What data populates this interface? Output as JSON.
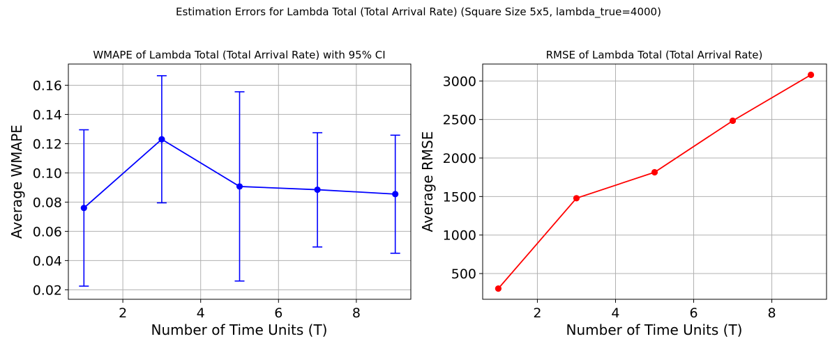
{
  "figure": {
    "suptitle": "Estimation Errors for Lambda Total (Total Arrival Rate) (Square Size 5x5, lambda_true=4000)"
  },
  "chart_data": [
    {
      "type": "line",
      "title": "WMAPE of Lambda Total (Total Arrival Rate) with 95% CI",
      "xlabel": "Number of Time Units (T)",
      "ylabel": "Average WMAPE",
      "x": [
        1,
        3,
        5,
        7,
        9
      ],
      "series": [
        {
          "values": [
            0.076,
            0.123,
            0.0907,
            0.0885,
            0.0855
          ],
          "ci_lower": [
            0.0225,
            0.0795,
            0.026,
            0.0493,
            0.045
          ],
          "ci_upper": [
            0.1295,
            0.1665,
            0.1555,
            0.1275,
            0.1258
          ],
          "color": "#0000ff"
        }
      ],
      "xlim": [
        0.6,
        9.4
      ],
      "ylim": [
        0.0135,
        0.1745
      ],
      "xticks": [
        2,
        4,
        6,
        8
      ],
      "yticks": [
        0.02,
        0.04,
        0.06,
        0.08,
        0.1,
        0.12,
        0.14,
        0.16
      ],
      "ytick_labels": [
        "0.02",
        "0.04",
        "0.06",
        "0.08",
        "0.10",
        "0.12",
        "0.14",
        "0.16"
      ],
      "grid": true
    },
    {
      "type": "line",
      "title": "RMSE of Lambda Total (Total Arrival Rate)",
      "xlabel": "Number of Time Units (T)",
      "ylabel": "Average RMSE",
      "x": [
        1,
        3,
        5,
        7,
        9
      ],
      "series": [
        {
          "values": [
            305,
            1478,
            1815,
            2484,
            3080
          ],
          "color": "#ff0000"
        }
      ],
      "xlim": [
        0.6,
        9.4
      ],
      "ylim": [
        166,
        3220
      ],
      "xticks": [
        2,
        4,
        6,
        8
      ],
      "yticks": [
        500,
        1000,
        1500,
        2000,
        2500,
        3000
      ],
      "ytick_labels": [
        "500",
        "1000",
        "1500",
        "2000",
        "2500",
        "3000"
      ],
      "grid": true
    }
  ]
}
